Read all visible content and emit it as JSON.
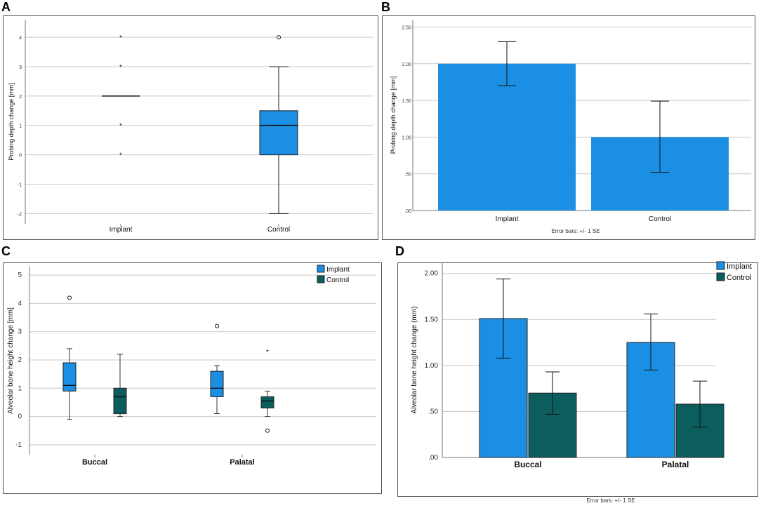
{
  "panels": {
    "a": "A",
    "b": "B",
    "c": "C",
    "d": "D"
  },
  "chart_data": [
    {
      "id": "A",
      "type": "box",
      "ylabel": "Probing depth change [mm]",
      "ylim": [
        -2.35,
        4.6
      ],
      "yticks": [
        -2,
        -1,
        0,
        1,
        2,
        3,
        4
      ],
      "ytick_labels": [
        "-2",
        "-1",
        "0",
        "1",
        "2",
        "3",
        "4"
      ],
      "grid": true,
      "categories": [
        "Implant",
        "Control"
      ],
      "boxes": [
        {
          "name": "Implant",
          "q1": 2,
          "median": 2,
          "q3": 2,
          "whisker_low": 2,
          "whisker_high": 2,
          "outliers": [],
          "extremes": [
            4,
            3,
            1,
            0
          ],
          "color": "#1a8fe3"
        },
        {
          "name": "Control",
          "q1": 0,
          "median": 1,
          "q3": 1.5,
          "whisker_low": -2,
          "whisker_high": 3,
          "outliers": [
            4
          ],
          "extremes": [],
          "color": "#1a8fe3"
        }
      ]
    },
    {
      "id": "B",
      "type": "bar",
      "ylabel": "Probing depth change [mm]",
      "ylim": [
        0,
        2.6
      ],
      "yticks": [
        0,
        0.5,
        1,
        1.5,
        2,
        2.5
      ],
      "ytick_labels": [
        ".00",
        ".50",
        "1.00",
        "1.50",
        "2.00",
        "2.50"
      ],
      "grid": true,
      "categories": [
        "Implant",
        "Control"
      ],
      "values": [
        2.0,
        1.0
      ],
      "err_low": [
        1.7,
        0.52
      ],
      "err_high": [
        2.3,
        1.49
      ],
      "color": "#1a8fe3",
      "footnote": "Error bars: +/- 1 SE"
    },
    {
      "id": "C",
      "type": "grouped-box",
      "ylabel": "Alveolar bone height change [mm]",
      "ylim": [
        -1.35,
        5.3
      ],
      "yticks": [
        -1,
        0,
        1,
        2,
        3,
        4,
        5
      ],
      "ytick_labels": [
        "-1",
        "0",
        "1",
        "2",
        "3",
        "4",
        "5"
      ],
      "grid": true,
      "categories": [
        "Buccal",
        "Palatal"
      ],
      "legend": [
        {
          "name": "Implant",
          "color": "#1a8fe3"
        },
        {
          "name": "Control",
          "color": "#0c5e5e"
        }
      ],
      "groups": [
        {
          "category": "Buccal",
          "boxes": [
            {
              "series": "Implant",
              "q1": 0.9,
              "median": 1.1,
              "q3": 1.9,
              "whisker_low": -0.1,
              "whisker_high": 2.4,
              "outliers": [
                4.2
              ],
              "extremes": []
            },
            {
              "series": "Control",
              "q1": 0.1,
              "median": 0.7,
              "q3": 1.0,
              "whisker_low": 0.0,
              "whisker_high": 2.2,
              "outliers": [],
              "extremes": []
            }
          ]
        },
        {
          "category": "Palatal",
          "boxes": [
            {
              "series": "Implant",
              "q1": 0.7,
              "median": 1.0,
              "q3": 1.6,
              "whisker_low": 0.1,
              "whisker_high": 1.8,
              "outliers": [
                3.2
              ],
              "extremes": []
            },
            {
              "series": "Control",
              "q1": 0.3,
              "median": 0.55,
              "q3": 0.7,
              "whisker_low": 0.0,
              "whisker_high": 0.9,
              "outliers": [
                -0.5
              ],
              "extremes": [
                2.3
              ]
            }
          ]
        }
      ]
    },
    {
      "id": "D",
      "type": "grouped-bar",
      "ylabel": "Alveolar bone height change (mm)",
      "ylim": [
        0,
        2.12
      ],
      "yticks": [
        0,
        0.5,
        1,
        1.5,
        2
      ],
      "ytick_labels": [
        ".00",
        ".50",
        "1.00",
        "1.50",
        "2.00"
      ],
      "grid": true,
      "categories": [
        "Buccal",
        "Palatal"
      ],
      "legend": [
        {
          "name": "Implant",
          "color": "#1a8fe3"
        },
        {
          "name": "Control",
          "color": "#0c5e5e"
        }
      ],
      "series": [
        {
          "name": "Implant",
          "values": [
            1.51,
            1.25
          ],
          "err_low": [
            1.08,
            0.95
          ],
          "err_high": [
            1.94,
            1.56
          ]
        },
        {
          "name": "Control",
          "values": [
            0.7,
            0.58
          ],
          "err_low": [
            0.47,
            0.33
          ],
          "err_high": [
            0.93,
            0.83
          ]
        }
      ],
      "footnote": "Error bars: +/- 1 SE"
    }
  ]
}
